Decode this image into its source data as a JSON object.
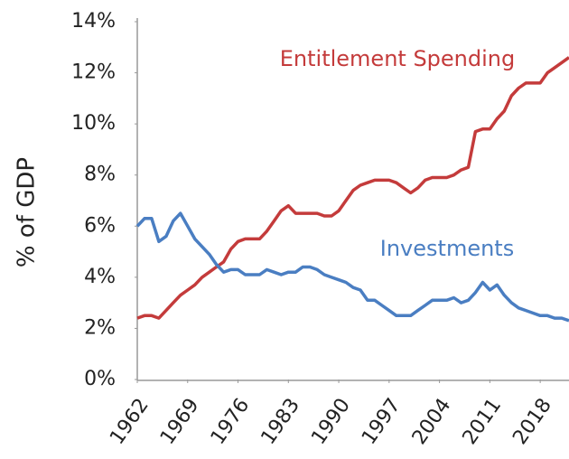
{
  "chart_data": {
    "type": "line",
    "ylabel": "% of GDP",
    "x": [
      1962,
      1963,
      1964,
      1965,
      1966,
      1967,
      1968,
      1969,
      1970,
      1971,
      1972,
      1973,
      1974,
      1975,
      1976,
      1977,
      1978,
      1979,
      1980,
      1981,
      1982,
      1983,
      1984,
      1985,
      1986,
      1987,
      1988,
      1989,
      1990,
      1991,
      1992,
      1993,
      1994,
      1995,
      1996,
      1997,
      1998,
      1999,
      2000,
      2001,
      2002,
      2003,
      2004,
      2005,
      2006,
      2007,
      2008,
      2009,
      2010,
      2011,
      2012,
      2013,
      2014,
      2015,
      2016,
      2017,
      2018,
      2019,
      2020,
      2021,
      2022
    ],
    "series": [
      {
        "name": "Entitlement Spending",
        "color": "#c43b3b",
        "values": [
          2.4,
          2.5,
          2.5,
          2.4,
          2.7,
          3.0,
          3.3,
          3.5,
          3.7,
          4.0,
          4.2,
          4.4,
          4.6,
          5.1,
          5.4,
          5.5,
          5.5,
          5.5,
          5.8,
          6.2,
          6.6,
          6.8,
          6.5,
          6.5,
          6.5,
          6.5,
          6.4,
          6.4,
          6.6,
          7.0,
          7.4,
          7.6,
          7.7,
          7.8,
          7.8,
          7.8,
          7.7,
          7.5,
          7.3,
          7.5,
          7.8,
          7.9,
          7.9,
          7.9,
          8.0,
          8.2,
          8.3,
          9.7,
          9.8,
          9.8,
          10.2,
          10.5,
          11.1,
          11.4,
          11.6,
          11.6,
          11.6,
          12.0,
          12.2,
          12.4,
          12.6
        ]
      },
      {
        "name": "Investments",
        "color": "#4a7ec2",
        "values": [
          6.0,
          6.3,
          6.3,
          5.4,
          5.6,
          6.2,
          6.5,
          6.0,
          5.5,
          5.2,
          4.9,
          4.5,
          4.2,
          4.3,
          4.3,
          4.1,
          4.1,
          4.1,
          4.3,
          4.2,
          4.1,
          4.2,
          4.2,
          4.4,
          4.4,
          4.3,
          4.1,
          4.0,
          3.9,
          3.8,
          3.6,
          3.5,
          3.1,
          3.1,
          2.9,
          2.7,
          2.5,
          2.5,
          2.5,
          2.7,
          2.9,
          3.1,
          3.1,
          3.1,
          3.2,
          3.0,
          3.1,
          3.4,
          3.8,
          3.5,
          3.7,
          3.3,
          3.0,
          2.8,
          2.7,
          2.6,
          2.5,
          2.5,
          2.4,
          2.4,
          2.3
        ]
      }
    ],
    "xlim": [
      1962,
      2022
    ],
    "xticks": [
      1962,
      1969,
      1976,
      1983,
      1990,
      1997,
      2004,
      2011,
      2018
    ],
    "ylim": [
      0,
      14
    ],
    "yticks": [
      {
        "value": 0,
        "label": "0%"
      },
      {
        "value": 2,
        "label": "2%"
      },
      {
        "value": 4,
        "label": "4%"
      },
      {
        "value": 6,
        "label": "6%"
      },
      {
        "value": 8,
        "label": "8%"
      },
      {
        "value": 10,
        "label": "10%"
      },
      {
        "value": 12,
        "label": "12%"
      },
      {
        "value": 14,
        "label": "14%"
      }
    ],
    "grid": false
  }
}
